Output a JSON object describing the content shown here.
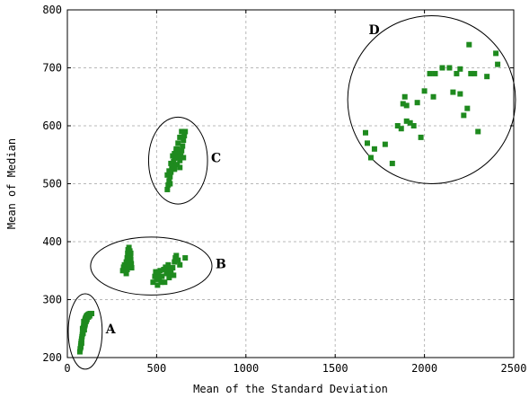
{
  "chart_data": {
    "type": "scatter",
    "xlabel": "Mean of the Standard Deviation",
    "ylabel": "Mean of Median",
    "xlim": [
      0,
      2500
    ],
    "ylim": [
      200,
      800
    ],
    "xticks": [
      "0",
      "500",
      "1000",
      "1500",
      "2000",
      "2500"
    ],
    "yticks": [
      "200",
      "300",
      "400",
      "500",
      "600",
      "700",
      "800"
    ],
    "grid": true,
    "marker_color": "#1e8a1e",
    "clusters": [
      {
        "label": "A",
        "center": [
          100,
          245
        ],
        "radius": [
          95,
          65
        ],
        "points": [
          [
            70,
            210
          ],
          [
            72,
            215
          ],
          [
            75,
            220
          ],
          [
            76,
            224
          ],
          [
            78,
            228
          ],
          [
            80,
            232
          ],
          [
            82,
            236
          ],
          [
            84,
            240
          ],
          [
            86,
            244
          ],
          [
            88,
            248
          ],
          [
            90,
            252
          ],
          [
            92,
            255
          ],
          [
            94,
            258
          ],
          [
            96,
            261
          ],
          [
            98,
            264
          ],
          [
            100,
            266
          ],
          [
            102,
            268
          ],
          [
            105,
            270
          ],
          [
            108,
            272
          ],
          [
            112,
            273
          ],
          [
            116,
            274
          ],
          [
            120,
            275
          ],
          [
            124,
            275
          ],
          [
            128,
            276
          ],
          [
            132,
            276
          ],
          [
            136,
            276
          ],
          [
            85,
            250
          ],
          [
            88,
            242
          ],
          [
            92,
            262
          ],
          [
            98,
            255
          ],
          [
            104,
            262
          ],
          [
            110,
            266
          ],
          [
            115,
            270
          ],
          [
            80,
            225
          ],
          [
            75,
            218
          ],
          [
            95,
            248
          ],
          [
            100,
            258
          ],
          [
            106,
            264
          ],
          [
            118,
            270
          ],
          [
            125,
            272
          ]
        ]
      },
      {
        "label": "B",
        "center": [
          470,
          358
        ],
        "radius": [
          340,
          50
        ],
        "points": [
          [
            310,
            350
          ],
          [
            315,
            356
          ],
          [
            320,
            360
          ],
          [
            325,
            350
          ],
          [
            330,
            365
          ],
          [
            335,
            372
          ],
          [
            338,
            380
          ],
          [
            340,
            386
          ],
          [
            345,
            390
          ],
          [
            350,
            384
          ],
          [
            352,
            376
          ],
          [
            355,
            370
          ],
          [
            358,
            362
          ],
          [
            345,
            358
          ],
          [
            335,
            352
          ],
          [
            330,
            345
          ],
          [
            360,
            355
          ],
          [
            350,
            365
          ],
          [
            340,
            372
          ],
          [
            355,
            380
          ],
          [
            480,
            330
          ],
          [
            490,
            340
          ],
          [
            500,
            335
          ],
          [
            505,
            325
          ],
          [
            510,
            345
          ],
          [
            520,
            350
          ],
          [
            525,
            330
          ],
          [
            530,
            340
          ],
          [
            540,
            352
          ],
          [
            550,
            356
          ],
          [
            555,
            345
          ],
          [
            560,
            350
          ],
          [
            565,
            360
          ],
          [
            570,
            338
          ],
          [
            580,
            346
          ],
          [
            590,
            355
          ],
          [
            600,
            365
          ],
          [
            605,
            372
          ],
          [
            610,
            376
          ],
          [
            620,
            368
          ],
          [
            630,
            360
          ],
          [
            660,
            372
          ],
          [
            495,
            348
          ],
          [
            515,
            338
          ],
          [
            545,
            330
          ],
          [
            575,
            352
          ],
          [
            595,
            342
          ]
        ]
      },
      {
        "label": "C",
        "center": [
          620,
          540
        ],
        "radius": [
          165,
          75
        ],
        "points": [
          [
            560,
            490
          ],
          [
            565,
            498
          ],
          [
            570,
            505
          ],
          [
            575,
            512
          ],
          [
            580,
            520
          ],
          [
            585,
            526
          ],
          [
            590,
            532
          ],
          [
            595,
            538
          ],
          [
            600,
            544
          ],
          [
            605,
            550
          ],
          [
            610,
            556
          ],
          [
            615,
            560
          ],
          [
            620,
            553
          ],
          [
            625,
            545
          ],
          [
            630,
            540
          ],
          [
            635,
            548
          ],
          [
            640,
            557
          ],
          [
            645,
            565
          ],
          [
            650,
            575
          ],
          [
            655,
            583
          ],
          [
            660,
            590
          ],
          [
            640,
            590
          ],
          [
            630,
            580
          ],
          [
            620,
            570
          ],
          [
            610,
            560
          ],
          [
            600,
            552
          ],
          [
            590,
            548
          ],
          [
            580,
            535
          ],
          [
            570,
            522
          ],
          [
            560,
            515
          ],
          [
            575,
            500
          ],
          [
            600,
            525
          ],
          [
            615,
            533
          ],
          [
            630,
            528
          ],
          [
            650,
            545
          ]
        ]
      },
      {
        "label": "D",
        "center": [
          2040,
          645
        ],
        "radius": [
          470,
          145
        ],
        "points": [
          [
            1670,
            588
          ],
          [
            1680,
            570
          ],
          [
            1700,
            545
          ],
          [
            1720,
            560
          ],
          [
            1780,
            568
          ],
          [
            1820,
            535
          ],
          [
            1850,
            600
          ],
          [
            1870,
            595
          ],
          [
            1880,
            638
          ],
          [
            1890,
            650
          ],
          [
            1900,
            608
          ],
          [
            1920,
            605
          ],
          [
            1940,
            600
          ],
          [
            1960,
            640
          ],
          [
            1980,
            580
          ],
          [
            2000,
            660
          ],
          [
            2030,
            690
          ],
          [
            2050,
            650
          ],
          [
            2060,
            690
          ],
          [
            2100,
            700
          ],
          [
            2140,
            700
          ],
          [
            2160,
            658
          ],
          [
            2180,
            690
          ],
          [
            2200,
            655
          ],
          [
            2220,
            618
          ],
          [
            2240,
            630
          ],
          [
            2250,
            740
          ],
          [
            2260,
            690
          ],
          [
            2280,
            690
          ],
          [
            2300,
            590
          ],
          [
            2350,
            685
          ],
          [
            2400,
            725
          ],
          [
            2410,
            706
          ],
          [
            2200,
            698
          ],
          [
            1900,
            635
          ]
        ]
      }
    ]
  }
}
